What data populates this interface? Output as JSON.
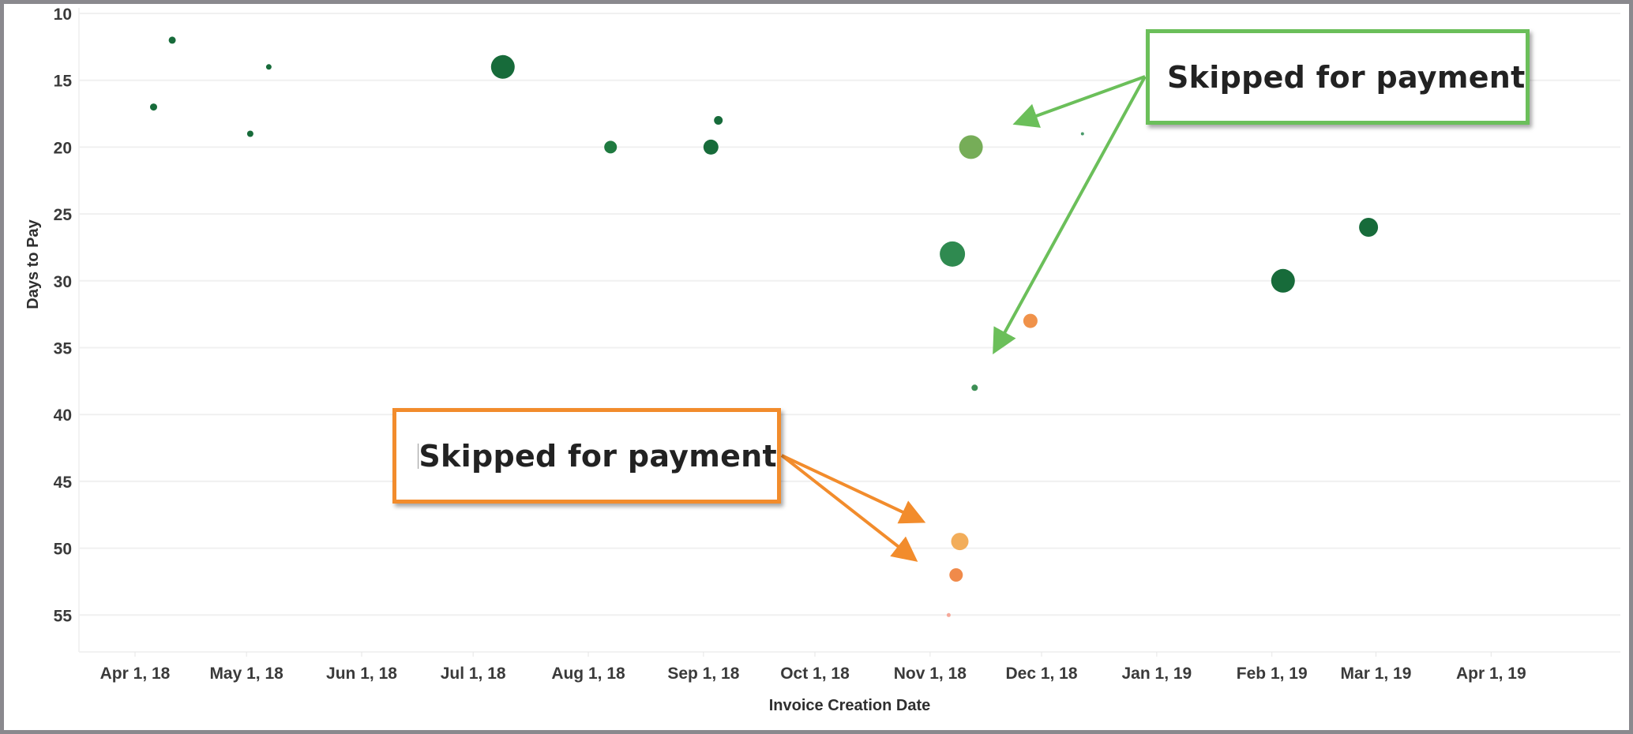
{
  "chart_data": {
    "type": "scatter",
    "title": "",
    "xlabel": "Invoice Creation Date",
    "ylabel": "Days to Pay",
    "y_axis_reversed": true,
    "ylim": [
      10,
      57
    ],
    "xlim": [
      "2018-03-15",
      "2019-05-05"
    ],
    "grid": {
      "horizontal": true,
      "vertical": false
    },
    "y_ticks": [
      10,
      15,
      20,
      25,
      30,
      35,
      40,
      45,
      50,
      55
    ],
    "x_ticks": [
      {
        "date": "2018-04-01",
        "label": "Apr 1, 18"
      },
      {
        "date": "2018-05-01",
        "label": "May 1, 18"
      },
      {
        "date": "2018-06-01",
        "label": "Jun 1, 18"
      },
      {
        "date": "2018-07-01",
        "label": "Jul 1, 18"
      },
      {
        "date": "2018-08-01",
        "label": "Aug 1, 18"
      },
      {
        "date": "2018-09-01",
        "label": "Sep 1, 18"
      },
      {
        "date": "2018-10-01",
        "label": "Oct 1, 18"
      },
      {
        "date": "2018-11-01",
        "label": "Nov 1, 18"
      },
      {
        "date": "2018-12-01",
        "label": "Dec 1, 18"
      },
      {
        "date": "2019-01-01",
        "label": "Jan 1, 19"
      },
      {
        "date": "2019-02-01",
        "label": "Feb 1, 19"
      },
      {
        "date": "2019-03-01",
        "label": "Mar 1, 19"
      },
      {
        "date": "2019-04-01",
        "label": "Apr 1, 19"
      }
    ],
    "points": [
      {
        "date": "2018-04-06",
        "days": 17,
        "size": 4.5,
        "color": "#176b3a"
      },
      {
        "date": "2018-04-11",
        "days": 12,
        "size": 4.5,
        "color": "#176b3a"
      },
      {
        "date": "2018-05-02",
        "days": 19,
        "size": 4,
        "color": "#176b3a"
      },
      {
        "date": "2018-05-07",
        "days": 14,
        "size": 3.5,
        "color": "#176b3a"
      },
      {
        "date": "2018-07-09",
        "days": 14,
        "size": 15,
        "color": "#176b3a"
      },
      {
        "date": "2018-08-07",
        "days": 20,
        "size": 8,
        "color": "#1f7a40"
      },
      {
        "date": "2018-09-03",
        "days": 20,
        "size": 9.5,
        "color": "#176b3a"
      },
      {
        "date": "2018-09-05",
        "days": 18,
        "size": 5.5,
        "color": "#176b3a"
      },
      {
        "date": "2018-11-07",
        "days": 28,
        "size": 16,
        "color": "#2f8a50"
      },
      {
        "date": "2018-11-12",
        "days": 20,
        "size": 15,
        "color": "#76ad58"
      },
      {
        "date": "2018-11-13",
        "days": 38,
        "size": 4,
        "color": "#3d8f55"
      },
      {
        "date": "2018-11-28",
        "days": 33,
        "size": 9,
        "color": "#f0924a"
      },
      {
        "date": "2018-12-12",
        "days": 19,
        "size": 2,
        "color": "#4a9a6a"
      },
      {
        "date": "2018-11-09",
        "days": 49.5,
        "size": 11,
        "color": "#f2ad5a"
      },
      {
        "date": "2018-11-08",
        "days": 52,
        "size": 8.5,
        "color": "#f08a4a"
      },
      {
        "date": "2018-11-06",
        "days": 55,
        "size": 2.5,
        "color": "#f5a89a"
      },
      {
        "date": "2019-02-04",
        "days": 30,
        "size": 15,
        "color": "#176b3a"
      },
      {
        "date": "2019-02-27",
        "days": 26,
        "size": 12,
        "color": "#176b3a"
      }
    ],
    "annotations": [
      {
        "text": "Skipped for payment",
        "color": "#6bbf5a",
        "targets": [
          "2018-11-12 / 20 days",
          "2018-11-13 / 38 days"
        ]
      },
      {
        "text": "Skipped for payment",
        "color": "#f28c2c",
        "targets": [
          "2018-11-09 / 49.5 days",
          "2018-11-08 / 52 days"
        ]
      }
    ]
  },
  "annotations": {
    "green": {
      "label": "Skipped for payment"
    },
    "orange": {
      "label": "Skipped for payment"
    }
  },
  "colors": {
    "frame": "#8a898e",
    "gridline": "#f0f0f0",
    "callout_green": "#6bbf5a",
    "callout_orange": "#f28c2c"
  }
}
